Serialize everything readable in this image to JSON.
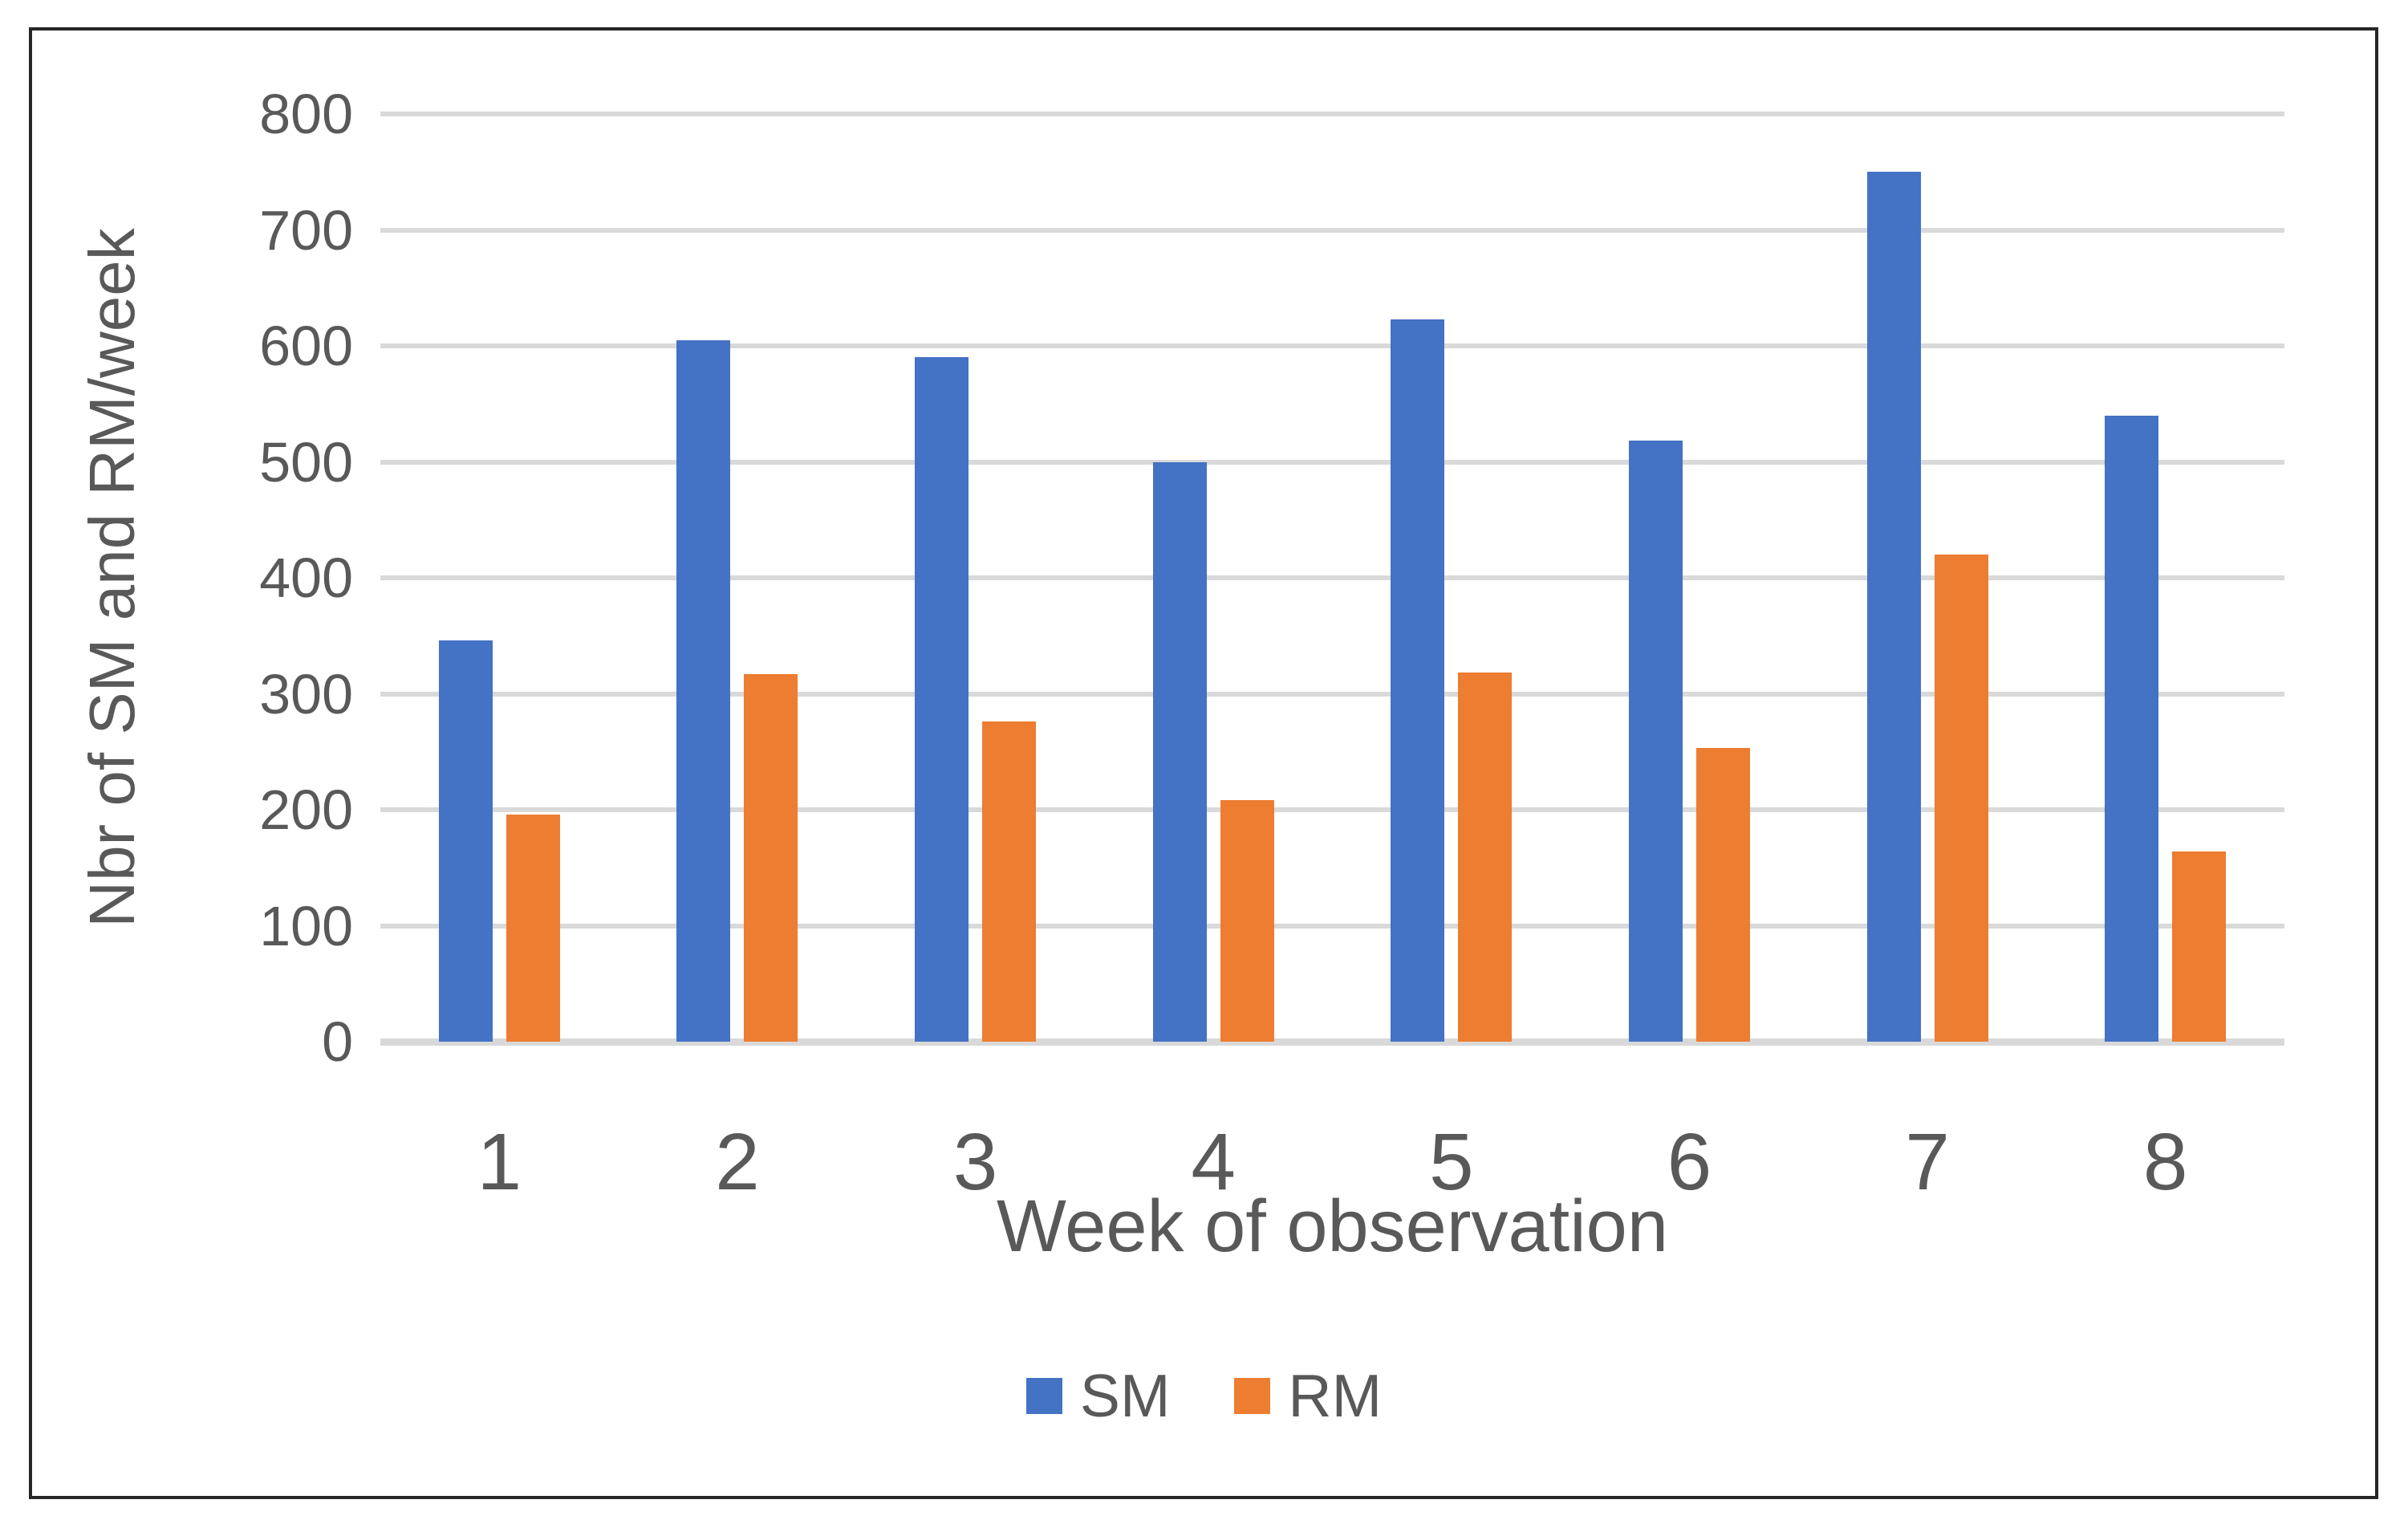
{
  "chart_data": {
    "type": "bar",
    "categories": [
      "1",
      "2",
      "3",
      "4",
      "5",
      "6",
      "7",
      "8"
    ],
    "series": [
      {
        "name": "SM",
        "color": "#4472C4",
        "values": [
          346,
          605,
          590,
          500,
          623,
          518,
          750,
          540
        ]
      },
      {
        "name": "RM",
        "color": "#ED7D31",
        "values": [
          196,
          317,
          276,
          208,
          318,
          253,
          420,
          164
        ]
      }
    ],
    "title": "",
    "xlabel": "Week of observation",
    "ylabel": "Nbr of SM and RM/week",
    "ylim": [
      0,
      800
    ],
    "yticks": [
      0,
      100,
      200,
      300,
      400,
      500,
      600,
      700,
      800
    ],
    "grid": true,
    "legend_position": "bottom",
    "legend": [
      "SM",
      "RM"
    ]
  },
  "styles": {
    "gridline_color": "#D9D9D9",
    "axis_line_color": "#D9D9D9",
    "axis_text_color": "#595959",
    "frame_border_color": "#262626",
    "background_color": "#FFFFFF"
  }
}
